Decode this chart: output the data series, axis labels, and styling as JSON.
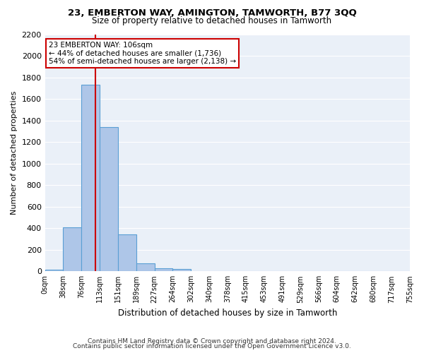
{
  "title": "23, EMBERTON WAY, AMINGTON, TAMWORTH, B77 3QQ",
  "subtitle": "Size of property relative to detached houses in Tamworth",
  "xlabel": "Distribution of detached houses by size in Tamworth",
  "ylabel": "Number of detached properties",
  "bin_labels": [
    "0sqm",
    "38sqm",
    "76sqm",
    "113sqm",
    "151sqm",
    "189sqm",
    "227sqm",
    "264sqm",
    "302sqm",
    "340sqm",
    "378sqm",
    "415sqm",
    "453sqm",
    "491sqm",
    "529sqm",
    "566sqm",
    "604sqm",
    "642sqm",
    "680sqm",
    "717sqm",
    "755sqm"
  ],
  "bar_values": [
    15,
    410,
    1735,
    1340,
    340,
    75,
    30,
    20,
    0,
    0,
    0,
    0,
    0,
    0,
    0,
    0,
    0,
    0,
    0,
    0
  ],
  "bar_color": "#aec6e8",
  "bar_edge_color": "#5a9fd4",
  "property_size": 106,
  "property_bin_index": 2,
  "annotation_text": "23 EMBERTON WAY: 106sqm\n← 44% of detached houses are smaller (1,736)\n54% of semi-detached houses are larger (2,138) →",
  "annotation_box_color": "#ffffff",
  "annotation_box_edge_color": "#cc0000",
  "vline_color": "#cc0000",
  "vline_x": 2.78,
  "ylim": [
    0,
    2200
  ],
  "yticks": [
    0,
    200,
    400,
    600,
    800,
    1000,
    1200,
    1400,
    1600,
    1800,
    2000,
    2200
  ],
  "bg_color": "#eaf0f8",
  "grid_color": "#ffffff",
  "footer_line1": "Contains HM Land Registry data © Crown copyright and database right 2024.",
  "footer_line2": "Contains public sector information licensed under the Open Government Licence v3.0."
}
